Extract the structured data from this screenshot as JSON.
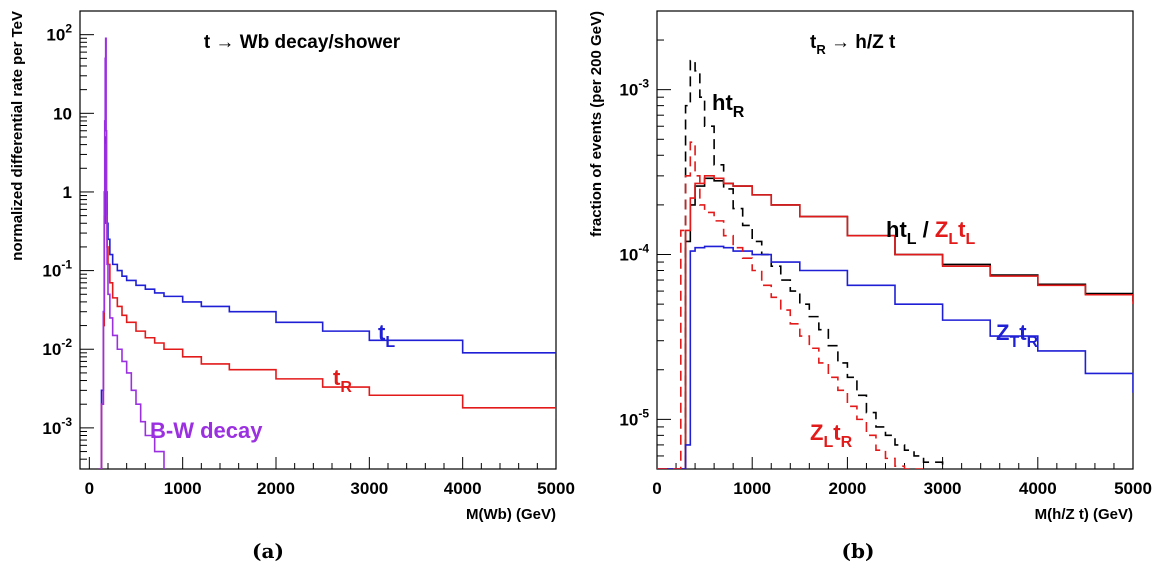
{
  "chart_data": [
    {
      "type": "line",
      "panel": "(a)",
      "title": "t → Wb decay/shower",
      "xlabel": "M(Wb)  (GeV)",
      "ylabel": "normalized differential rate per TeV",
      "xlim": [
        -100,
        5000
      ],
      "ylim": [
        0.0003,
        200
      ],
      "yscale": "log",
      "xticks": [
        "0",
        "1000",
        "2000",
        "3000",
        "4000",
        "5000"
      ],
      "yticks": [
        {
          "value": 0.001,
          "label": "10",
          "exp": "-3"
        },
        {
          "value": 0.01,
          "label": "10",
          "exp": "-2"
        },
        {
          "value": 0.1,
          "label": "10",
          "exp": "-1"
        },
        {
          "value": 1,
          "label": "1",
          "exp": ""
        },
        {
          "value": 10,
          "label": "10",
          "exp": ""
        },
        {
          "value": 100,
          "label": "10",
          "exp": "2"
        }
      ],
      "series": [
        {
          "name": "t",
          "sub": "L",
          "color": "#1f1fd6",
          "dash": "",
          "x": [
            100,
            130,
            150,
            160,
            170,
            175,
            180,
            190,
            200,
            220,
            250,
            300,
            350,
            400,
            500,
            600,
            700,
            800,
            1000,
            1200,
            1500,
            2000,
            2500,
            3000,
            4000,
            5000
          ],
          "y": [
            0.0003,
            0.003,
            0.03,
            0.5,
            3,
            5,
            1,
            0.4,
            0.25,
            0.16,
            0.12,
            0.1,
            0.085,
            0.075,
            0.065,
            0.058,
            0.052,
            0.047,
            0.04,
            0.035,
            0.03,
            0.022,
            0.017,
            0.013,
            0.009,
            0.0055
          ]
        },
        {
          "name": "t",
          "sub": "R",
          "color": "#e31a1a",
          "dash": "",
          "x": [
            100,
            130,
            150,
            160,
            170,
            175,
            180,
            190,
            200,
            220,
            250,
            300,
            350,
            400,
            500,
            600,
            700,
            800,
            1000,
            1200,
            1500,
            2000,
            2500,
            3000,
            4000,
            5000
          ],
          "y": [
            0.0003,
            0.002,
            0.02,
            0.4,
            2.5,
            4,
            0.7,
            0.2,
            0.12,
            0.07,
            0.045,
            0.035,
            0.027,
            0.022,
            0.017,
            0.014,
            0.012,
            0.01,
            0.008,
            0.0065,
            0.0055,
            0.0042,
            0.0033,
            0.0026,
            0.0018,
            0.0013
          ]
        },
        {
          "name": "B-W decay",
          "sub": "",
          "color": "#9b30e0",
          "dash": "",
          "x": [
            100,
            130,
            150,
            160,
            165,
            170,
            175,
            180,
            185,
            190,
            200,
            220,
            250,
            300,
            350,
            400,
            450,
            500,
            550,
            600,
            700,
            800
          ],
          "y": [
            0.0003,
            0.002,
            0.03,
            1,
            8,
            50,
            90,
            6,
            0.5,
            0.12,
            0.05,
            0.025,
            0.015,
            0.01,
            0.007,
            0.005,
            0.003,
            0.002,
            0.0012,
            0.0008,
            0.0005,
            0.0003
          ]
        }
      ],
      "annotations": [
        {
          "text": "t",
          "sub": "L",
          "color": "#1f1fd6"
        },
        {
          "text": "t",
          "sub": "R",
          "color": "#e31a1a"
        },
        {
          "text": "B-W decay",
          "sub": "",
          "color": "#9b30e0"
        }
      ]
    },
    {
      "type": "line",
      "panel": "(b)",
      "title_parts": {
        "a": "t",
        "a_sub": "R",
        "b": " → h/Z t"
      },
      "xlabel": "M(h/Z t)  (GeV)",
      "ylabel": "fraction of events (per 200 GeV)",
      "xlim": [
        0,
        5000
      ],
      "ylim": [
        5e-06,
        0.003
      ],
      "yscale": "log",
      "xticks": [
        "0",
        "1000",
        "2000",
        "3000",
        "4000",
        "5000"
      ],
      "yticks": [
        {
          "value": 1e-05,
          "label": "10",
          "exp": "-5"
        },
        {
          "value": 0.0001,
          "label": "10",
          "exp": "-4"
        },
        {
          "value": 0.001,
          "label": "10",
          "exp": "-3"
        }
      ],
      "series": [
        {
          "name": "ht",
          "sub": "R",
          "color": "#000000",
          "dash": "10,6",
          "x": [
            0,
            250,
            300,
            350,
            400,
            450,
            500,
            600,
            700,
            800,
            900,
            1000,
            1100,
            1200,
            1300,
            1400,
            1500,
            1600,
            1700,
            1800,
            1900,
            2000,
            2100,
            2200,
            2300,
            2400,
            2500,
            2600,
            2700,
            2800,
            3000
          ],
          "y": [
            5e-06,
            5e-06,
            0.0008,
            0.0015,
            0.0013,
            0.0009,
            0.0006,
            0.00035,
            0.00025,
            0.00019,
            0.00015,
            0.00012,
            0.0001,
            8.5e-05,
            7e-05,
            6e-05,
            5e-05,
            4.2e-05,
            3.5e-05,
            2.8e-05,
            2.2e-05,
            1.8e-05,
            1.4e-05,
            1.1e-05,
            9e-06,
            8e-06,
            7e-06,
            6.5e-06,
            6e-06,
            5.5e-06,
            5e-06
          ]
        },
        {
          "name": "ht",
          "sub": "L",
          "color": "#000000",
          "dash": "",
          "x": [
            0,
            250,
            300,
            350,
            400,
            500,
            600,
            700,
            800,
            1000,
            1200,
            1500,
            2000,
            2500,
            3000,
            3500,
            4000,
            4500,
            5000
          ],
          "y": [
            5e-06,
            5e-06,
            0.00012,
            0.0002,
            0.00026,
            0.00029,
            0.00028,
            0.00027,
            0.00026,
            0.00023,
            0.0002,
            0.00017,
            0.00013,
            0.0001,
            8.7e-05,
            7.5e-05,
            6.6e-05,
            5.8e-05,
            5.2e-05
          ]
        },
        {
          "name": "Z",
          "sub": "L",
          "name2": "t",
          "sub2": "L",
          "color": "#e31a1a",
          "dash": "",
          "x": [
            0,
            250,
            300,
            350,
            400,
            500,
            600,
            700,
            800,
            1000,
            1200,
            1500,
            2000,
            2500,
            3000,
            3500,
            4000,
            4500,
            5000
          ],
          "y": [
            5e-06,
            5e-06,
            0.00014,
            0.00022,
            0.00027,
            0.0003,
            0.00029,
            0.00027,
            0.00026,
            0.00023,
            0.0002,
            0.00017,
            0.00013,
            0.0001,
            8.5e-05,
            7.4e-05,
            6.5e-05,
            5.7e-05,
            5e-05
          ]
        },
        {
          "name": "Z",
          "sub": "T",
          "name2": "t",
          "sub2": "R",
          "color": "#1f1fd6",
          "dash": "",
          "x": [
            0,
            250,
            300,
            350,
            400,
            500,
            600,
            700,
            800,
            1000,
            1200,
            1500,
            2000,
            2500,
            3000,
            3500,
            4000,
            4500,
            5000
          ],
          "y": [
            5e-06,
            5e-06,
            7e-06,
            0.000105,
            0.00011,
            0.000112,
            0.000112,
            0.00011,
            0.000105,
            0.0001,
            9e-05,
            8e-05,
            6.5e-05,
            5e-05,
            4e-05,
            3.2e-05,
            2.6e-05,
            1.9e-05,
            1.45e-05
          ]
        },
        {
          "name": "Z",
          "sub": "L",
          "name2": "t",
          "sub2": "R",
          "color": "#e31a1a",
          "dash": "10,6",
          "x": [
            0,
            200,
            250,
            300,
            350,
            400,
            450,
            500,
            600,
            700,
            800,
            900,
            1000,
            1100,
            1200,
            1300,
            1400,
            1500,
            1600,
            1700,
            1800,
            1900,
            2000,
            2100,
            2200,
            2300,
            2400,
            2500,
            2600,
            2800
          ],
          "y": [
            5e-06,
            5e-06,
            0.00014,
            0.0003,
            0.00048,
            0.0003,
            0.0002,
            0.00018,
            0.00016,
            0.00013,
            0.00011,
            9.5e-05,
            8e-05,
            6.5e-05,
            5.5e-05,
            4.6e-05,
            3.8e-05,
            3.2e-05,
            2.7e-05,
            2.2e-05,
            1.8e-05,
            1.5e-05,
            1.2e-05,
            1e-05,
            8e-06,
            6.5e-06,
            5.8e-06,
            5.2e-06,
            5e-06,
            5e-06
          ]
        }
      ],
      "annotations": [
        {
          "text": "ht",
          "sub": "R",
          "color": "#000000"
        },
        {
          "text": "ht",
          "sub": "L",
          "color": "#000000",
          "sep": " / ",
          "text2": "Z",
          "sub2": "L",
          "text3": "t",
          "sub3": "L",
          "color2": "#e31a1a"
        },
        {
          "text": "Z",
          "sub": "T",
          "text2": "t",
          "sub2": "R",
          "color": "#1f1fd6"
        },
        {
          "text": "Z",
          "sub": "L",
          "text2": "t",
          "sub2": "R",
          "color": "#e31a1a"
        }
      ]
    }
  ],
  "captions": [
    "(a)",
    "(b)"
  ]
}
